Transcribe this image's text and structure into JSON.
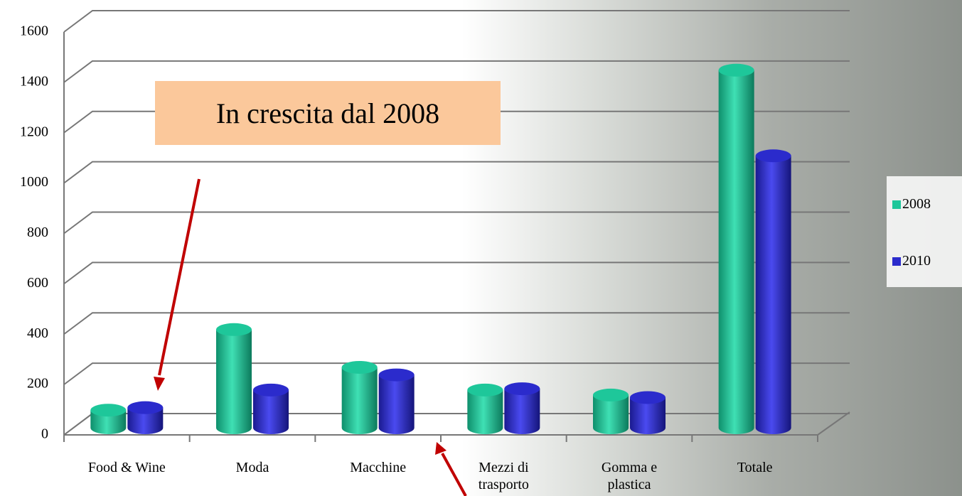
{
  "chart_data": {
    "type": "bar3d",
    "annotation": "In crescita dal 2008",
    "categories": [
      "Food & Wine",
      "Moda",
      "Macchine",
      "Mezzi di trasporto",
      "Gomma e plastica",
      "Totale"
    ],
    "series": [
      {
        "name": "2008",
        "color": "#1ec79a",
        "values": [
          70,
          390,
          240,
          150,
          130,
          1420
        ]
      },
      {
        "name": "2010",
        "color": "#2b2bcc",
        "values": [
          80,
          150,
          210,
          155,
          120,
          1080
        ]
      }
    ],
    "ylim": [
      0,
      1600
    ],
    "yticks": [
      0,
      200,
      400,
      600,
      800,
      1000,
      1200,
      1400,
      1600
    ],
    "grid": true,
    "legend": "right"
  }
}
